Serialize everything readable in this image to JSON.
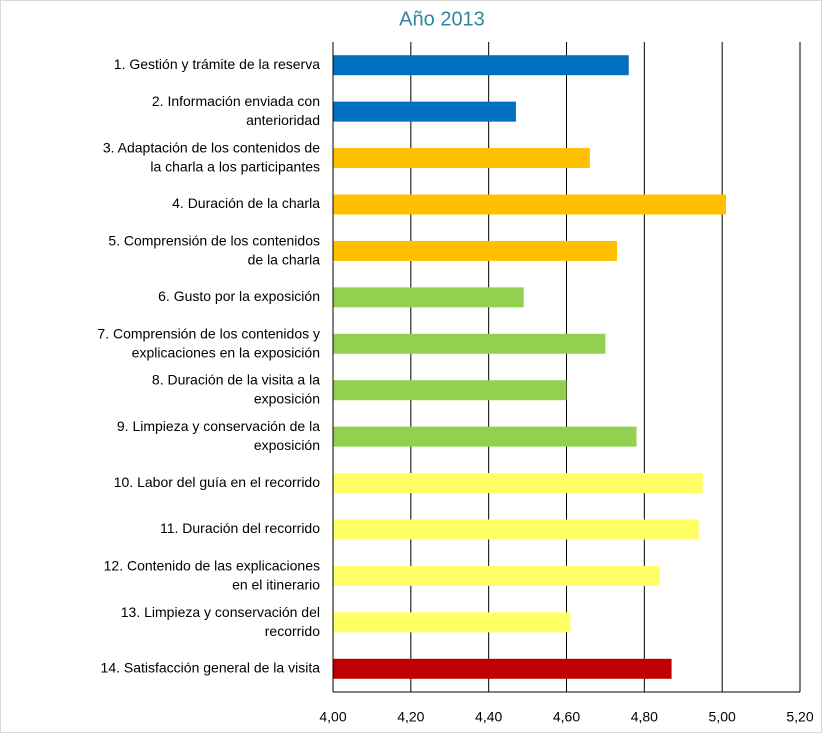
{
  "chart_data": {
    "type": "bar",
    "orientation": "horizontal",
    "title": "Año 2013",
    "categories": [
      "1. Gestión y trámite de la reserva",
      "2. Información enviada con\nanterioridad",
      "3. Adaptación de los contenidos de\nla charla a los participantes",
      "4. Duración de la charla",
      "5. Comprensión de los contenidos\nde la charla",
      "6. Gusto por la exposición",
      "7. Comprensión de los contenidos y\nexplicaciones en la exposición",
      "8. Duración de la visita a la\nexposición",
      "9. Limpieza y conservación de la\nexposición",
      "10. Labor del guía en el recorrido",
      "11. Duración del recorrido",
      "12. Contenido de las explicaciones\nen el itinerario",
      "13. Limpieza y conservación del\nrecorrido",
      "14. Satisfacción general de la visita"
    ],
    "values": [
      4.76,
      4.47,
      4.66,
      5.01,
      4.73,
      4.49,
      4.7,
      4.6,
      4.78,
      4.95,
      4.94,
      4.84,
      4.61,
      4.87
    ],
    "colors": [
      "#0070c0",
      "#0070c0",
      "#ffc000",
      "#ffc000",
      "#ffc000",
      "#92d050",
      "#92d050",
      "#92d050",
      "#92d050",
      "#ffff66",
      "#ffff66",
      "#ffff66",
      "#ffff66",
      "#c00000"
    ],
    "xlim": [
      4,
      5.2
    ],
    "xticks": [
      {
        "value": 4,
        "label": "4,00"
      },
      {
        "value": 4.2,
        "label": "4,20"
      },
      {
        "value": 4.4,
        "label": "4,40"
      },
      {
        "value": 4.6,
        "label": "4,60"
      },
      {
        "value": 4.8,
        "label": "4,80"
      },
      {
        "value": 5,
        "label": "5,00"
      },
      {
        "value": 5.2,
        "label": "5,20"
      }
    ],
    "grid": true
  }
}
